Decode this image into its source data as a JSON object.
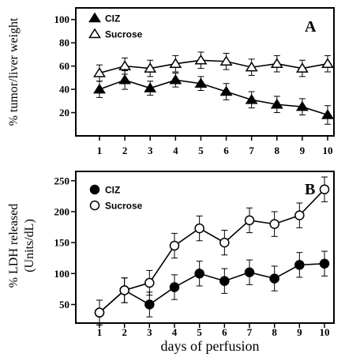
{
  "xlabel": "days of perfusion",
  "chart_data": [
    {
      "type": "line",
      "panel_label": "A",
      "ylabel": "% tumor/liver weight",
      "x": [
        1,
        2,
        3,
        4,
        5,
        6,
        7,
        8,
        9,
        10
      ],
      "xticks": [
        "1",
        "2",
        "3",
        "4",
        "5",
        "6",
        "7",
        "8",
        "9",
        "10"
      ],
      "ylim": [
        0,
        110
      ],
      "yticks": [
        20,
        40,
        60,
        80,
        100
      ],
      "grid": false,
      "legend_position": "top-left",
      "series": [
        {
          "name": "CIZ",
          "marker": "filled-triangle",
          "values": [
            40,
            48,
            41,
            48,
            45,
            38,
            31,
            27,
            25,
            18
          ],
          "errors": [
            7,
            8,
            6,
            6,
            6,
            7,
            7,
            7,
            7,
            8
          ]
        },
        {
          "name": "Sucrose",
          "marker": "open-triangle",
          "values": [
            54,
            60,
            58,
            62,
            65,
            64,
            59,
            62,
            58,
            62
          ],
          "errors": [
            7,
            7,
            7,
            7,
            7,
            7,
            7,
            7,
            7,
            7
          ]
        }
      ]
    },
    {
      "type": "line",
      "panel_label": "B",
      "ylabel_line1": "% LDH released",
      "ylabel_line2": "(Units/dL)",
      "x": [
        1,
        2,
        3,
        4,
        5,
        6,
        7,
        8,
        9,
        10
      ],
      "xticks": [
        "1",
        "2",
        "3",
        "4",
        "5",
        "6",
        "7",
        "8",
        "9",
        "10"
      ],
      "ylim": [
        20,
        265
      ],
      "yticks": [
        50,
        100,
        150,
        200,
        250
      ],
      "grid": false,
      "legend_position": "top-left",
      "series": [
        {
          "name": "CIZ",
          "marker": "filled-circle",
          "values": [
            37,
            73,
            50,
            78,
            100,
            88,
            102,
            92,
            114,
            116
          ],
          "errors": [
            20,
            20,
            20,
            20,
            20,
            20,
            20,
            20,
            20,
            20
          ]
        },
        {
          "name": "Sucrose",
          "marker": "open-circle",
          "values": [
            37,
            73,
            85,
            145,
            173,
            150,
            186,
            180,
            194,
            236
          ],
          "errors": [
            20,
            20,
            20,
            20,
            20,
            20,
            20,
            20,
            20,
            20
          ]
        }
      ]
    }
  ]
}
